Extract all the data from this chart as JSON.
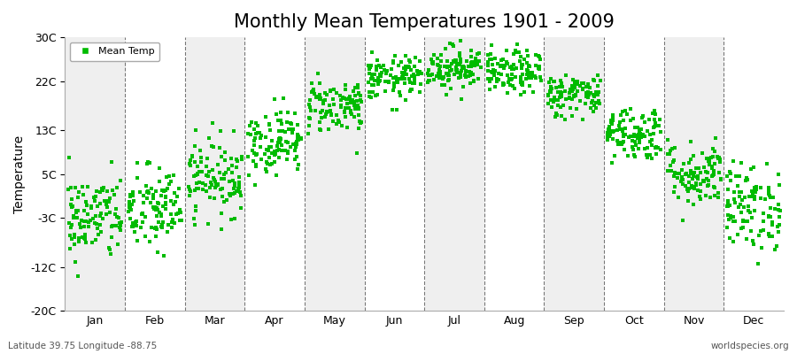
{
  "title": "Monthly Mean Temperatures 1901 - 2009",
  "ylabel": "Temperature",
  "xlabel_labels": [
    "Jan",
    "Feb",
    "Mar",
    "Apr",
    "May",
    "Jun",
    "Jul",
    "Aug",
    "Sep",
    "Oct",
    "Nov",
    "Dec"
  ],
  "yticks": [
    -20,
    -12,
    -3,
    5,
    13,
    22,
    30
  ],
  "ytick_labels": [
    "-20C",
    "-12C",
    "-3C",
    "5C",
    "13C",
    "22C",
    "30C"
  ],
  "ylim": [
    -20,
    30
  ],
  "dot_color": "#00BB00",
  "background_color": "#EFEFEF",
  "band_color": "#FFFFFF",
  "title_fontsize": 15,
  "legend_label": "Mean Temp",
  "footer_left": "Latitude 39.75 Longitude -88.75",
  "footer_right": "worldspecies.org",
  "monthly_means": [
    -3.0,
    -1.5,
    4.5,
    11.0,
    17.5,
    22.5,
    24.5,
    23.5,
    19.5,
    12.5,
    5.0,
    -1.0
  ],
  "monthly_stds": [
    4.0,
    4.0,
    3.5,
    3.0,
    2.5,
    2.0,
    2.0,
    2.0,
    2.0,
    2.5,
    3.0,
    4.0
  ],
  "n_years": 109
}
